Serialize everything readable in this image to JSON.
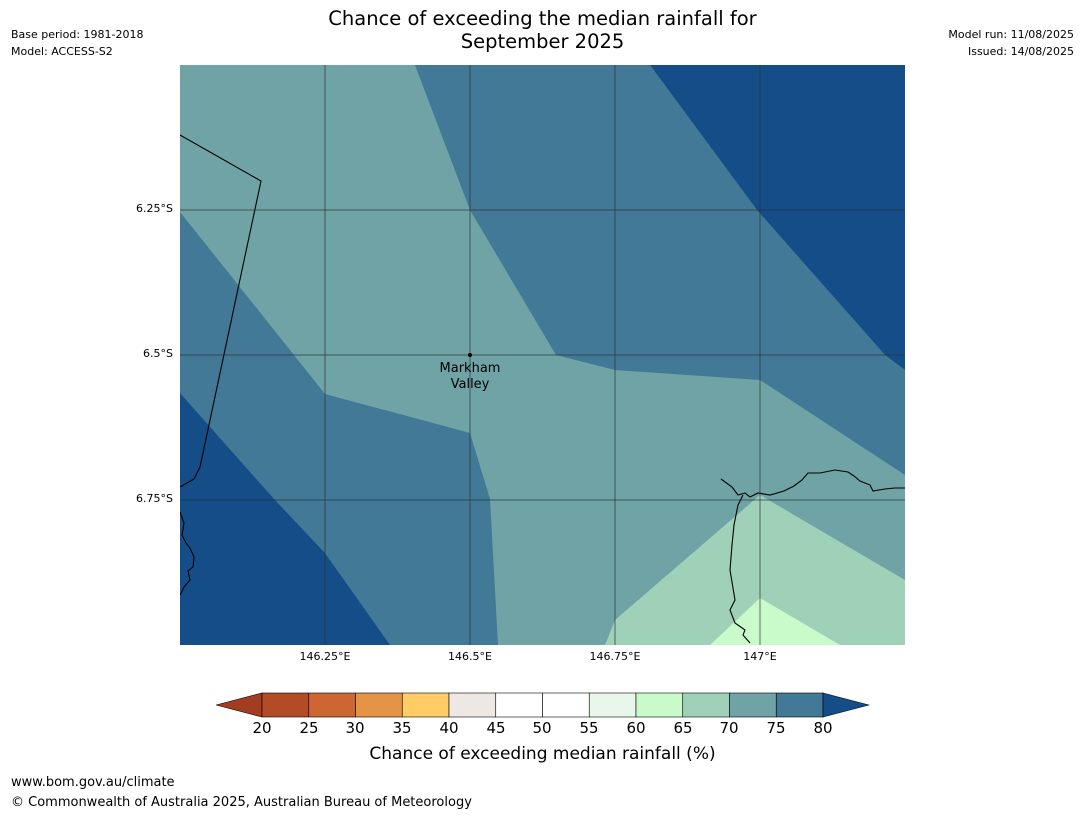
{
  "title": {
    "line1": "Chance of exceeding the median rainfall for",
    "line2": "September 2025"
  },
  "meta_left": {
    "base_period": "Base period: 1981-2018",
    "model": "Model: ACCESS-S2"
  },
  "meta_right": {
    "model_run": "Model run: 11/08/2025",
    "issued": "Issued: 14/08/2025"
  },
  "map": {
    "lon_ticks": [
      "146.25°E",
      "146.5°E",
      "146.75°E",
      "147°E"
    ],
    "lat_ticks": [
      "6.25°S",
      "6.5°S",
      "6.75°S"
    ],
    "lon_range": [
      146.0,
      147.25
    ],
    "lat_range": [
      -7.0,
      -6.0
    ],
    "place": {
      "name_line1": "Markham",
      "name_line2": "Valley",
      "lon": 146.5,
      "lat": -6.5
    },
    "zone_colors": {
      "65_70": "#9fd0b8",
      "70_75": "#6fa3a6",
      "75_80": "#417996",
      "gt_80": "#154d88",
      "60_65": "#c9fbca"
    }
  },
  "colorbar": {
    "title": "Chance of exceeding median rainfall (%)",
    "labels": [
      "20",
      "25",
      "30",
      "35",
      "40",
      "45",
      "50",
      "55",
      "60",
      "65",
      "70",
      "75",
      "80"
    ],
    "colors": [
      "#a33d21",
      "#b34b26",
      "#cd6632",
      "#e39446",
      "#ffcc66",
      "#ede8e4",
      "#ffffff",
      "#ffffff",
      "#e9f7eb",
      "#c9fbca",
      "#9fd0b8",
      "#6fa3a6",
      "#417996",
      "#154d88"
    ]
  },
  "footer": {
    "url": "www.bom.gov.au/climate",
    "copyright": "© Commonwealth of Australia 2025, Australian Bureau of Meteorology"
  }
}
